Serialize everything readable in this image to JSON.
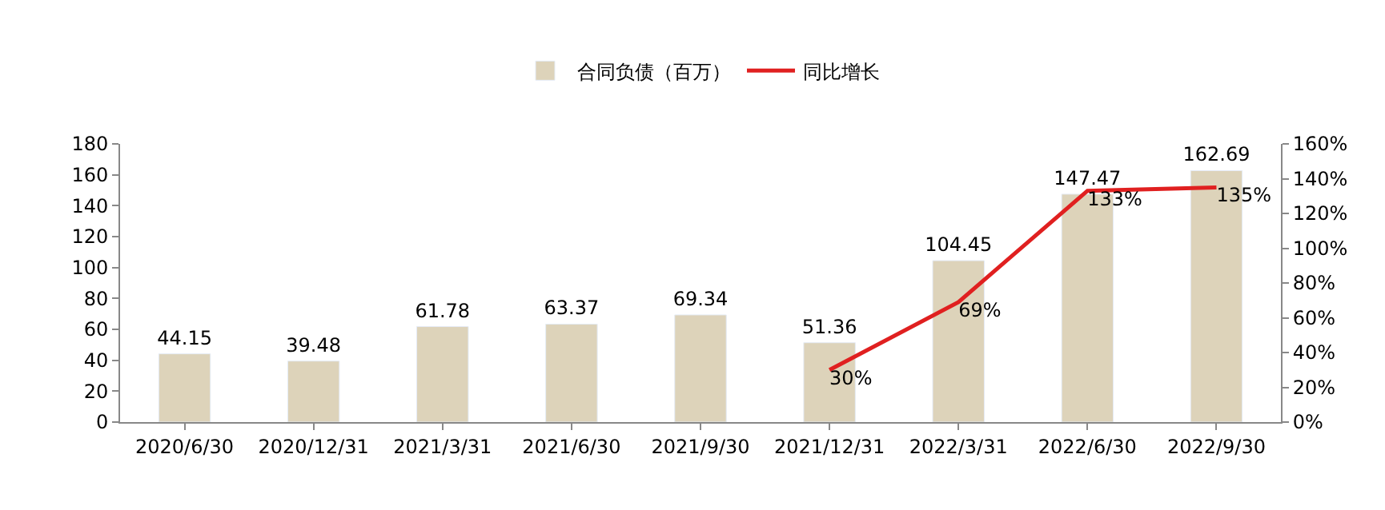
{
  "chart_data": {
    "type": "bar",
    "categories": [
      "2020/6/30",
      "2020/12/31",
      "2021/3/31",
      "2021/6/30",
      "2021/9/30",
      "2021/12/31",
      "2022/3/31",
      "2022/6/30",
      "2022/9/30"
    ],
    "series": [
      {
        "name": "合同负债（百万）",
        "color": "#ddd3ba",
        "values": [
          44.15,
          39.48,
          61.78,
          63.37,
          69.34,
          51.36,
          104.45,
          147.47,
          162.69
        ],
        "data_labels": true
      },
      {
        "name": "同比增长",
        "type": "line",
        "axis": "y2",
        "color": "#e02020",
        "values": [
          null,
          null,
          null,
          null,
          null,
          30,
          69,
          133,
          135
        ],
        "value_labels": [
          null,
          null,
          null,
          null,
          null,
          "30%",
          "69%",
          "133%",
          "135%"
        ],
        "marker": "none",
        "line_style": "solid"
      }
    ],
    "ylim": [
      0,
      180
    ],
    "yticks": [
      0,
      20,
      40,
      60,
      80,
      100,
      120,
      140,
      160,
      180
    ],
    "y2lim": [
      0,
      160
    ],
    "y2ticks": [
      {
        "value": 0,
        "label": "0%"
      },
      {
        "value": 20,
        "label": "20%"
      },
      {
        "value": 40,
        "label": "40%"
      },
      {
        "value": 60,
        "label": "60%"
      },
      {
        "value": 80,
        "label": "80%"
      },
      {
        "value": 100,
        "label": "100%"
      },
      {
        "value": 120,
        "label": "120%"
      },
      {
        "value": 140,
        "label": "140%"
      },
      {
        "value": 160,
        "label": "160%"
      }
    ],
    "legend": "top"
  }
}
